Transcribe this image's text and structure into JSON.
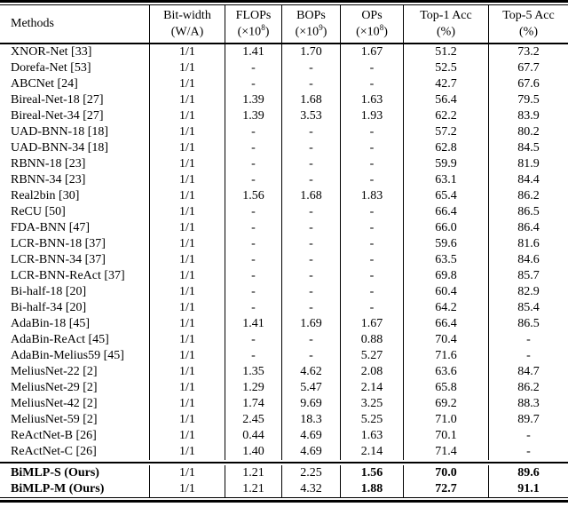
{
  "colors": {
    "text": "#000000",
    "background": "#ffffff",
    "rule": "#000000"
  },
  "table": {
    "header": {
      "columns": [
        {
          "line1": "Methods",
          "line2_pre": "",
          "line2_sup": "",
          "line2_post": ""
        },
        {
          "line1": "Bit-width",
          "line2_pre": "(W/A)",
          "line2_sup": "",
          "line2_post": ""
        },
        {
          "line1": "FLOPs",
          "line2_pre": "(×10",
          "line2_sup": "8",
          "line2_post": ")"
        },
        {
          "line1": "BOPs",
          "line2_pre": "(×10",
          "line2_sup": "9",
          "line2_post": ")"
        },
        {
          "line1": "OPs",
          "line2_pre": "(×10",
          "line2_sup": "8",
          "line2_post": ")"
        },
        {
          "line1": "Top-1 Acc",
          "line2_pre": "(%)",
          "line2_sup": "",
          "line2_post": ""
        },
        {
          "line1": "Top-5 Acc",
          "line2_pre": "(%)",
          "line2_sup": "",
          "line2_post": ""
        }
      ]
    },
    "rows": [
      {
        "method": "XNOR-Net [33]",
        "bitwidth": "1/1",
        "flops": "1.41",
        "bops": "1.70",
        "ops": "1.67",
        "top1": "51.2",
        "top5": "73.2"
      },
      {
        "method": "Dorefa-Net [53]",
        "bitwidth": "1/1",
        "flops": "-",
        "bops": "-",
        "ops": "-",
        "top1": "52.5",
        "top5": "67.7"
      },
      {
        "method": "ABCNet [24]",
        "bitwidth": "1/1",
        "flops": "-",
        "bops": "-",
        "ops": "-",
        "top1": "42.7",
        "top5": "67.6"
      },
      {
        "method": "Bireal-Net-18 [27]",
        "bitwidth": "1/1",
        "flops": "1.39",
        "bops": "1.68",
        "ops": "1.63",
        "top1": "56.4",
        "top5": "79.5"
      },
      {
        "method": "Bireal-Net-34 [27]",
        "bitwidth": "1/1",
        "flops": "1.39",
        "bops": "3.53",
        "ops": "1.93",
        "top1": "62.2",
        "top5": "83.9"
      },
      {
        "method": "UAD-BNN-18 [18]",
        "bitwidth": "1/1",
        "flops": "-",
        "bops": "-",
        "ops": "-",
        "top1": "57.2",
        "top5": "80.2"
      },
      {
        "method": "UAD-BNN-34 [18]",
        "bitwidth": "1/1",
        "flops": "-",
        "bops": "-",
        "ops": "-",
        "top1": "62.8",
        "top5": "84.5"
      },
      {
        "method": "RBNN-18 [23]",
        "bitwidth": "1/1",
        "flops": "-",
        "bops": "-",
        "ops": "-",
        "top1": "59.9",
        "top5": "81.9"
      },
      {
        "method": "RBNN-34 [23]",
        "bitwidth": "1/1",
        "flops": "-",
        "bops": "-",
        "ops": "-",
        "top1": "63.1",
        "top5": "84.4"
      },
      {
        "method": "Real2bin [30]",
        "bitwidth": "1/1",
        "flops": "1.56",
        "bops": "1.68",
        "ops": "1.83",
        "top1": "65.4",
        "top5": "86.2"
      },
      {
        "method": "ReCU [50]",
        "bitwidth": "1/1",
        "flops": "-",
        "bops": "-",
        "ops": "-",
        "top1": "66.4",
        "top5": "86.5"
      },
      {
        "method": "FDA-BNN [47]",
        "bitwidth": "1/1",
        "flops": "-",
        "bops": "-",
        "ops": "-",
        "top1": "66.0",
        "top5": "86.4"
      },
      {
        "method": "LCR-BNN-18 [37]",
        "bitwidth": "1/1",
        "flops": "-",
        "bops": "-",
        "ops": "-",
        "top1": "59.6",
        "top5": "81.6"
      },
      {
        "method": "LCR-BNN-34 [37]",
        "bitwidth": "1/1",
        "flops": "-",
        "bops": "-",
        "ops": "-",
        "top1": "63.5",
        "top5": "84.6"
      },
      {
        "method": "LCR-BNN-ReAct [37]",
        "bitwidth": "1/1",
        "flops": "-",
        "bops": "-",
        "ops": "-",
        "top1": "69.8",
        "top5": "85.7"
      },
      {
        "method": "Bi-half-18 [20]",
        "bitwidth": "1/1",
        "flops": "-",
        "bops": "-",
        "ops": "-",
        "top1": "60.4",
        "top5": "82.9"
      },
      {
        "method": "Bi-half-34 [20]",
        "bitwidth": "1/1",
        "flops": "-",
        "bops": "-",
        "ops": "-",
        "top1": "64.2",
        "top5": "85.4"
      },
      {
        "method": "AdaBin-18 [45]",
        "bitwidth": "1/1",
        "flops": "1.41",
        "bops": "1.69",
        "ops": "1.67",
        "top1": "66.4",
        "top5": "86.5"
      },
      {
        "method": "AdaBin-ReAct [45]",
        "bitwidth": "1/1",
        "flops": "-",
        "bops": "-",
        "ops": "0.88",
        "top1": "70.4",
        "top5": "-"
      },
      {
        "method": "AdaBin-Melius59 [45]",
        "bitwidth": "1/1",
        "flops": "-",
        "bops": "-",
        "ops": "5.27",
        "top1": "71.6",
        "top5": "-"
      },
      {
        "method": "MeliusNet-22 [2]",
        "bitwidth": "1/1",
        "flops": "1.35",
        "bops": "4.62",
        "ops": "2.08",
        "top1": "63.6",
        "top5": "84.7"
      },
      {
        "method": "MeliusNet-29 [2]",
        "bitwidth": "1/1",
        "flops": "1.29",
        "bops": "5.47",
        "ops": "2.14",
        "top1": "65.8",
        "top5": "86.2"
      },
      {
        "method": "MeliusNet-42 [2]",
        "bitwidth": "1/1",
        "flops": "1.74",
        "bops": "9.69",
        "ops": "3.25",
        "top1": "69.2",
        "top5": "88.3"
      },
      {
        "method": "MeliusNet-59 [2]",
        "bitwidth": "1/1",
        "flops": "2.45",
        "bops": "18.3",
        "ops": "5.25",
        "top1": "71.0",
        "top5": "89.7"
      },
      {
        "method": "ReActNet-B [26]",
        "bitwidth": "1/1",
        "flops": "0.44",
        "bops": "4.69",
        "ops": "1.63",
        "top1": "70.1",
        "top5": "-"
      },
      {
        "method": "ReActNet-C [26]",
        "bitwidth": "1/1",
        "flops": "1.40",
        "bops": "4.69",
        "ops": "2.14",
        "top1": "71.4",
        "top5": "-"
      }
    ],
    "ours_rows": [
      {
        "method": "BiMLP-S (Ours)",
        "bitwidth": "1/1",
        "flops": "1.21",
        "bops": "2.25",
        "ops": "1.56",
        "top1": "70.0",
        "top5": "89.6",
        "bold_cols": [
          "method",
          "ops",
          "top1",
          "top5"
        ]
      },
      {
        "method": "BiMLP-M (Ours)",
        "bitwidth": "1/1",
        "flops": "1.21",
        "bops": "4.32",
        "ops": "1.88",
        "top1": "72.7",
        "top5": "91.1",
        "bold_cols": [
          "method",
          "ops",
          "top1",
          "top5"
        ]
      }
    ]
  }
}
